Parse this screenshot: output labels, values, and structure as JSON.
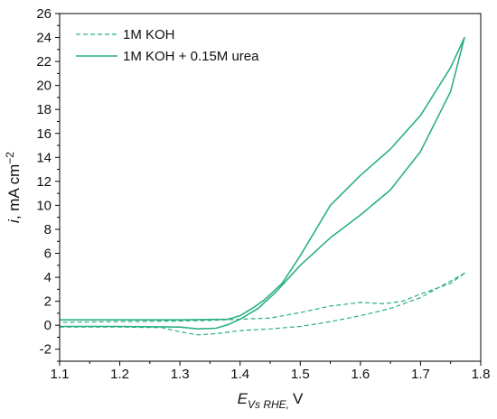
{
  "chart_data": {
    "type": "line",
    "title": "",
    "xlabel": {
      "symbol": "E",
      "subscript": "Vs RHE,",
      "unit": "V"
    },
    "ylabel": {
      "symbol": "i",
      "unit": ", mA cm",
      "superscript": "−2"
    },
    "xlim": [
      1.1,
      1.8
    ],
    "ylim": [
      -3,
      26
    ],
    "x_ticks": [
      "1.1",
      "1.2",
      "1.3",
      "1.4",
      "1.5",
      "1.6",
      "1.7",
      "1.8"
    ],
    "y_ticks": [
      "-2",
      "0",
      "2",
      "4",
      "6",
      "8",
      "10",
      "12",
      "14",
      "16",
      "18",
      "20",
      "22",
      "24",
      "26"
    ],
    "grid": false,
    "legend_position": "top-left",
    "colors": {
      "series": "#2bb07f",
      "axis": "#000000"
    },
    "series": [
      {
        "name": "1M KOH",
        "style": "dashed",
        "x": [
          1.1,
          1.2,
          1.27,
          1.3,
          1.33,
          1.36,
          1.4,
          1.45,
          1.5,
          1.55,
          1.6,
          1.65,
          1.7,
          1.75,
          1.775,
          1.75,
          1.7,
          1.67,
          1.64,
          1.6,
          1.55,
          1.5,
          1.45,
          1.4,
          1.35,
          1.3,
          1.2,
          1.1
        ],
        "y": [
          -0.15,
          -0.15,
          -0.2,
          -0.55,
          -0.8,
          -0.7,
          -0.45,
          -0.3,
          -0.1,
          0.3,
          0.8,
          1.4,
          2.3,
          3.7,
          4.4,
          3.5,
          2.6,
          2.0,
          1.8,
          1.9,
          1.6,
          1.05,
          0.6,
          0.5,
          0.4,
          0.35,
          0.3,
          0.25
        ]
      },
      {
        "name": "1M KOH + 0.15M urea",
        "style": "solid",
        "x": [
          1.1,
          1.2,
          1.3,
          1.33,
          1.36,
          1.38,
          1.4,
          1.43,
          1.46,
          1.5,
          1.55,
          1.6,
          1.65,
          1.7,
          1.75,
          1.773,
          1.75,
          1.7,
          1.65,
          1.6,
          1.55,
          1.5,
          1.47,
          1.44,
          1.42,
          1.4,
          1.38,
          1.3,
          1.2,
          1.1
        ],
        "y": [
          -0.1,
          -0.1,
          -0.15,
          -0.3,
          -0.25,
          0.05,
          0.5,
          1.4,
          2.8,
          5.0,
          7.3,
          9.2,
          11.3,
          14.5,
          19.5,
          24.0,
          21.5,
          17.5,
          14.7,
          12.5,
          10.0,
          5.8,
          3.5,
          2.1,
          1.4,
          0.8,
          0.5,
          0.45,
          0.45,
          0.45
        ]
      }
    ]
  }
}
